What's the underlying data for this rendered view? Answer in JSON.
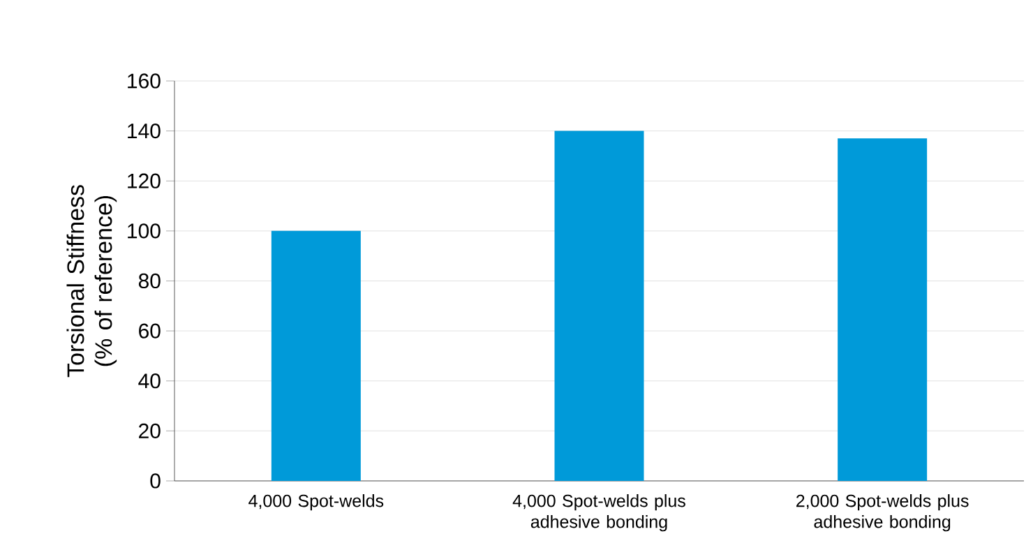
{
  "chart_data": {
    "type": "bar",
    "ylabel": "Torsional Stiffness (% of reference)",
    "categories": [
      "4,000 Spot-welds",
      "4,000 Spot-welds plus adhesive bonding",
      "2,000 Spot-welds plus adhesive bonding"
    ],
    "values": [
      100,
      140,
      137
    ],
    "color": "#009ad9",
    "ylim": [
      0,
      160
    ],
    "yticks": [
      0,
      20,
      40,
      60,
      80,
      100,
      120,
      140,
      160
    ],
    "grid": "y"
  }
}
